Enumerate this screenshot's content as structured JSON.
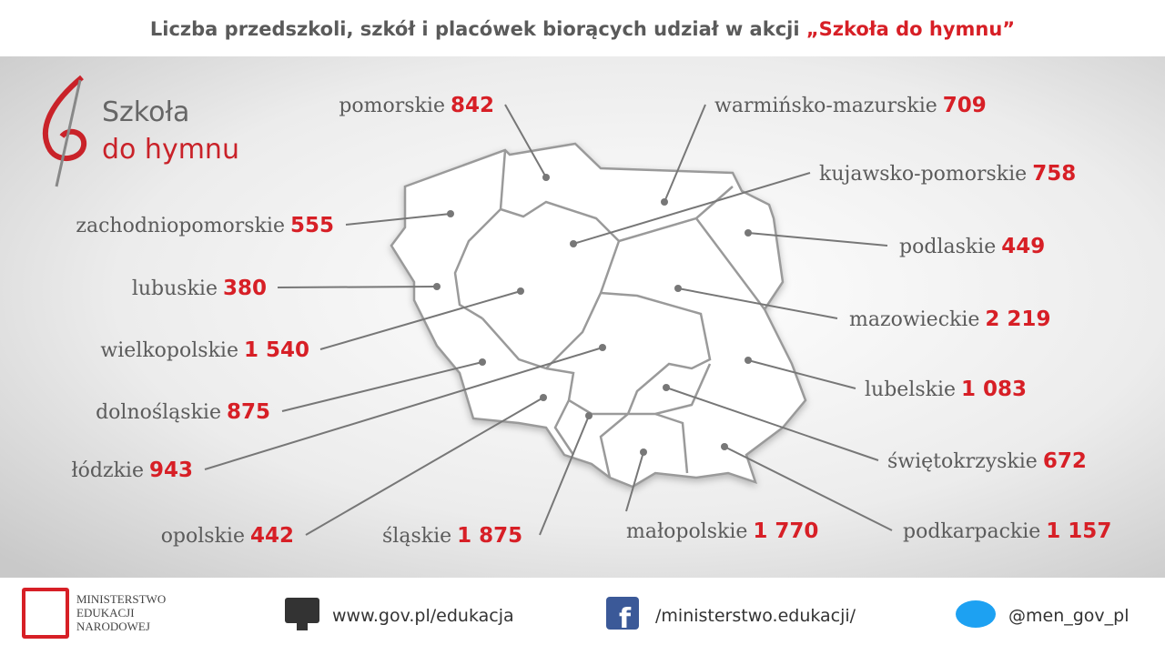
{
  "header": {
    "title": "Liczba przedszkoli, szkół i placówek biorących udział w akcji",
    "title_highlight": "„Szkoła do hymnu”"
  },
  "logo": {
    "line1": "Szkoła",
    "line2": "do hymnu"
  },
  "regions": [
    {
      "name": "pomorskie",
      "count": "842"
    },
    {
      "name": "warmińsko-mazurskie",
      "count": "709"
    },
    {
      "name": "kujawsko-pomorskie",
      "count": "758"
    },
    {
      "name": "zachodniopomorskie",
      "count": "555"
    },
    {
      "name": "podlaskie",
      "count": "449"
    },
    {
      "name": "lubuskie",
      "count": "380"
    },
    {
      "name": "mazowieckie",
      "count": "2 219"
    },
    {
      "name": "wielkopolskie",
      "count": "1 540"
    },
    {
      "name": "lubelskie",
      "count": "1 083"
    },
    {
      "name": "dolnośląskie",
      "count": "875"
    },
    {
      "name": "łódzkie",
      "count": "943"
    },
    {
      "name": "świętokrzyskie",
      "count": "672"
    },
    {
      "name": "opolskie",
      "count": "442"
    },
    {
      "name": "śląskie",
      "count": "1 875"
    },
    {
      "name": "małopolskie",
      "count": "1 770"
    },
    {
      "name": "podkarpackie",
      "count": "1 157"
    }
  ],
  "footer": {
    "ministry": [
      "MINISTERSTWO",
      "EDUKACJI",
      "NARODOWEJ"
    ],
    "website": "www.gov.pl/edukacja",
    "facebook": "/ministerstwo.edukacji/",
    "twitter": "@men_gov_pl"
  }
}
